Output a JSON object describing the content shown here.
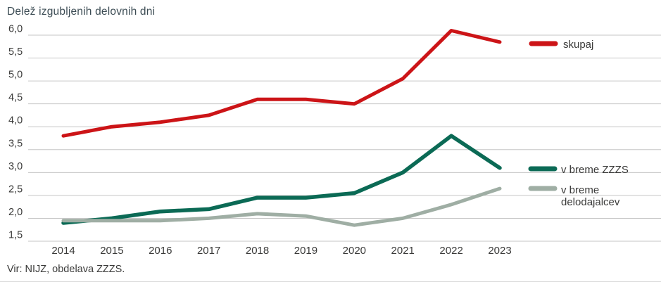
{
  "title": "Delež izgubljenih delovnih dni",
  "source": "Vir: NIJZ, obdelava ZZZS.",
  "colors": {
    "skupaj": "#cc1417",
    "zzzs": "#0b6a55",
    "delodajalcev": "#9faea4",
    "gridline": "#c6c6c6",
    "text": "#3a3a39",
    "title_text": "#3c4c54"
  },
  "legend": {
    "skupaj": "skupaj",
    "zzzs": "v breme ZZZS",
    "delodajalcev_line1": "v breme",
    "delodajalcev_line2": "delodajalcev"
  },
  "chart_data": {
    "type": "line",
    "title": "Delež izgubljenih delovnih dni",
    "xlabel": "",
    "ylabel": "",
    "ylim": [
      1.5,
      6.0
    ],
    "grid": true,
    "legend_position": "right",
    "categories": [
      "2014",
      "2015",
      "2016",
      "2017",
      "2018",
      "2019",
      "2020",
      "2021",
      "2022",
      "2023"
    ],
    "y_ticks": [
      6.0,
      5.5,
      5.0,
      4.5,
      4.0,
      3.5,
      3.0,
      2.5,
      2.0,
      1.5
    ],
    "y_tick_labels": [
      "6,0",
      "5,5",
      "5,0",
      "4,5",
      "4,0",
      "3,5",
      "3,0",
      "2,5",
      "2,0",
      "1,5"
    ],
    "series": [
      {
        "name": "skupaj",
        "color": "#cc1417",
        "values": [
          3.8,
          4.0,
          4.1,
          4.25,
          4.6,
          4.6,
          4.5,
          5.05,
          6.1,
          5.85
        ]
      },
      {
        "name": "v breme ZZZS",
        "color": "#0b6a55",
        "values": [
          1.9,
          2.0,
          2.15,
          2.2,
          2.45,
          2.45,
          2.55,
          3.0,
          3.8,
          3.1
        ]
      },
      {
        "name": "v breme delodajalcev",
        "color": "#9faea4",
        "values": [
          1.95,
          1.95,
          1.95,
          2.0,
          2.1,
          2.05,
          1.85,
          2.0,
          2.3,
          2.65
        ]
      }
    ]
  }
}
